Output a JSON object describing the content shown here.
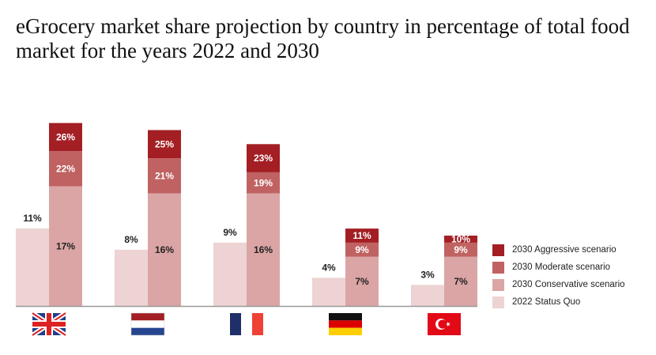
{
  "title": "eGrocery market share projection by country in percentage of total food market for the years 2022 and 2030",
  "chart_data": {
    "type": "bar",
    "stacked_second_bar": true,
    "categories": [
      "United Kingdom",
      "Netherlands",
      "France",
      "Germany",
      "Turkey"
    ],
    "category_icons": [
      "uk-flag",
      "netherlands-flag",
      "france-flag",
      "germany-flag",
      "turkey-flag"
    ],
    "series": [
      {
        "name": "2022 Status Quo",
        "color": "#edd3d3",
        "values": [
          11,
          8,
          9,
          4,
          3
        ]
      },
      {
        "name": "2030 Conservative scenario",
        "color": "#dba5a5",
        "values": [
          17,
          16,
          16,
          7,
          7
        ]
      },
      {
        "name": "2030 Moderate scenario",
        "color": "#c06262",
        "values": [
          22,
          21,
          19,
          9,
          9
        ]
      },
      {
        "name": "2030 Aggressive scenario",
        "color": "#a31f24",
        "values": [
          26,
          25,
          23,
          11,
          10
        ]
      }
    ],
    "value_suffix": "%",
    "ylim": [
      0,
      27
    ],
    "grid": false,
    "legend_position": "right"
  }
}
